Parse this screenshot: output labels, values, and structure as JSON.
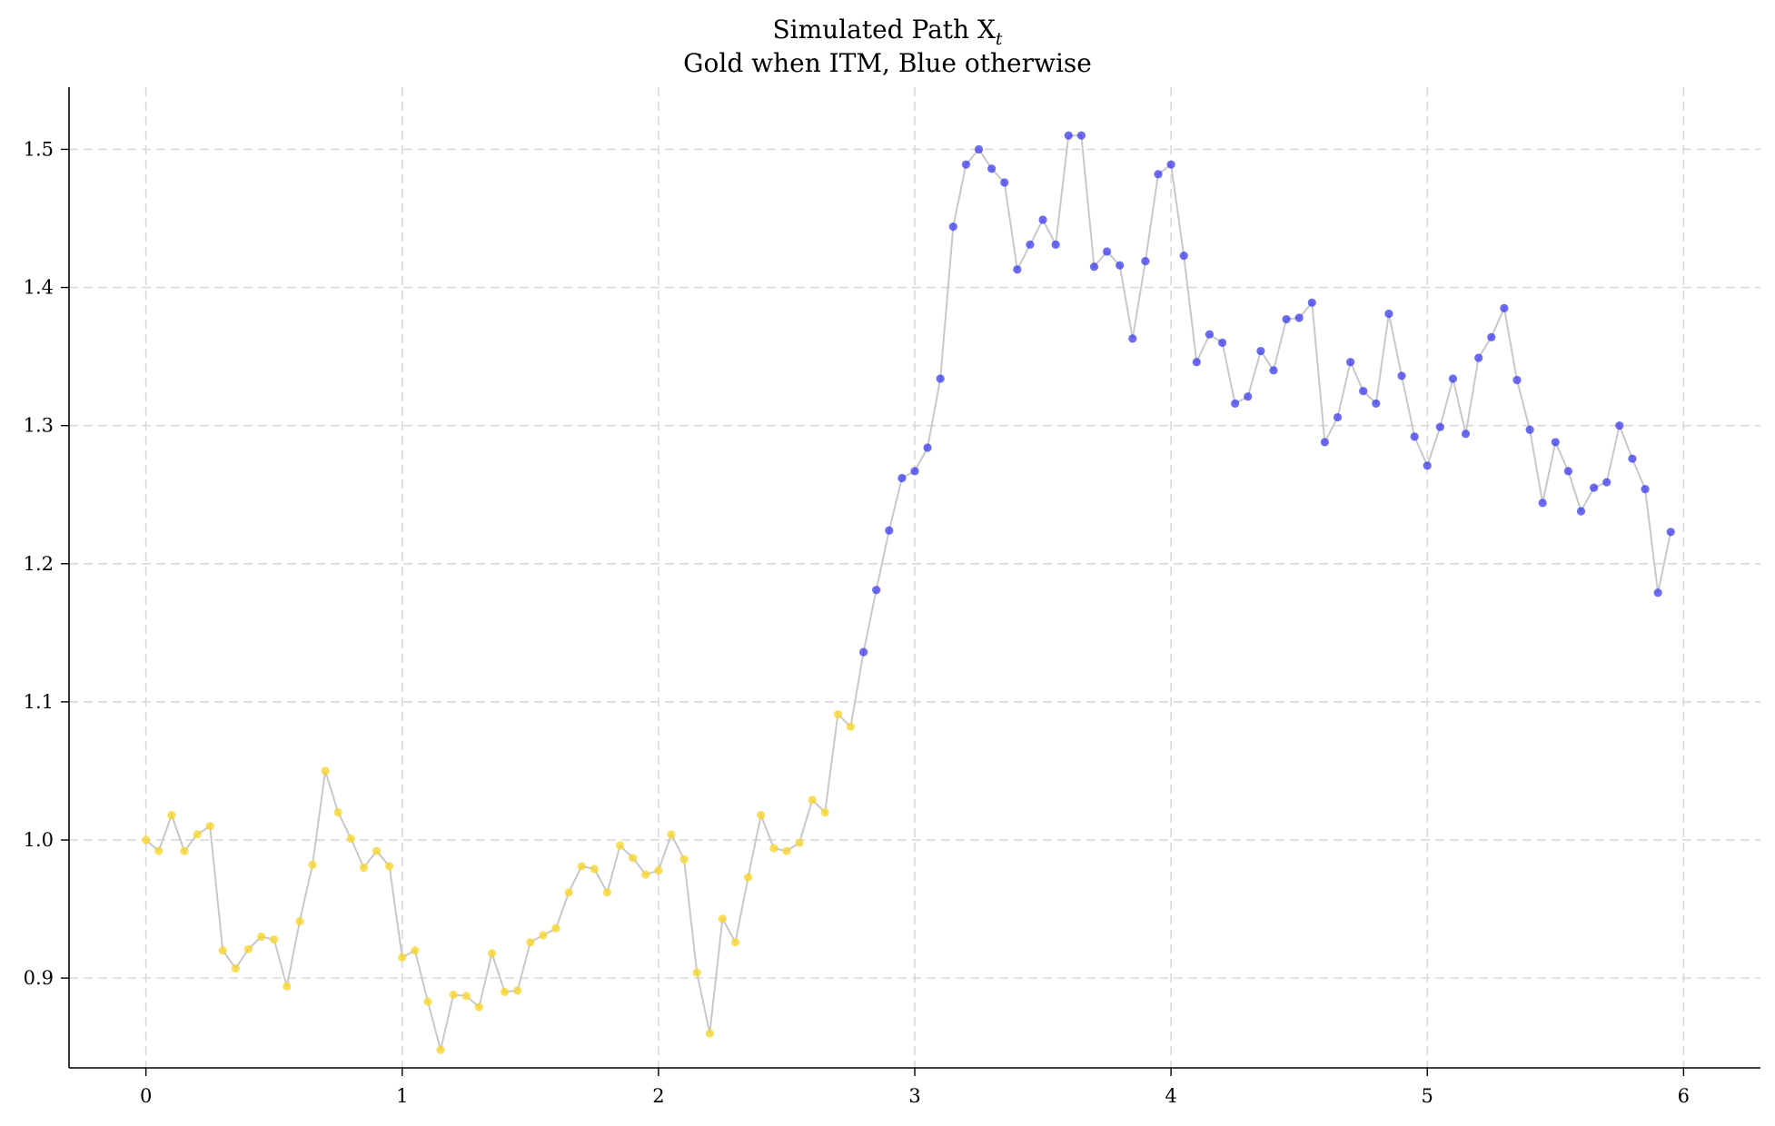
{
  "chart_data": {
    "type": "scatter",
    "title": "Simulated Path X",
    "title_subscript": "t",
    "subtitle": "Gold when ITM, Blue otherwise",
    "xlabel": "",
    "ylabel": "",
    "xlim": [
      -0.3,
      6.3
    ],
    "ylim": [
      0.835,
      1.545
    ],
    "x_ticks": [
      0,
      1,
      2,
      3,
      4,
      5,
      6
    ],
    "x_tick_labels": [
      "0",
      "1",
      "2",
      "3",
      "4",
      "5",
      "6"
    ],
    "y_ticks": [
      0.9,
      1.0,
      1.1,
      1.2,
      1.3,
      1.4,
      1.5
    ],
    "y_tick_labels": [
      "0.9",
      "1.0",
      "1.1",
      "1.2",
      "1.3",
      "1.4",
      "1.5"
    ],
    "grid": true,
    "colors": {
      "itm": "#f7d631",
      "otm": "#3a3af0",
      "line": "#c8c8c8"
    },
    "x_step": 0.05,
    "y": [
      1.0,
      0.992,
      1.018,
      0.992,
      1.004,
      1.01,
      0.92,
      0.907,
      0.921,
      0.93,
      0.928,
      0.894,
      0.941,
      0.982,
      1.05,
      1.02,
      1.001,
      0.98,
      0.992,
      0.981,
      0.915,
      0.92,
      0.883,
      0.848,
      0.888,
      0.887,
      0.879,
      0.918,
      0.89,
      0.891,
      0.926,
      0.931,
      0.936,
      0.962,
      0.981,
      0.979,
      0.962,
      0.996,
      0.987,
      0.975,
      0.978,
      1.004,
      0.986,
      0.904,
      0.86,
      0.943,
      0.926,
      0.973,
      1.018,
      0.994,
      0.992,
      0.998,
      1.029,
      1.02,
      1.091,
      1.082,
      1.136,
      1.181,
      1.224,
      1.262,
      1.267,
      1.284,
      1.334,
      1.444,
      1.489,
      1.5,
      1.486,
      1.476,
      1.413,
      1.431,
      1.449,
      1.431,
      1.51,
      1.51,
      1.415,
      1.426,
      1.416,
      1.363,
      1.419,
      1.482,
      1.489,
      1.423,
      1.346,
      1.366,
      1.36,
      1.316,
      1.321,
      1.354,
      1.34,
      1.377,
      1.378,
      1.389,
      1.288,
      1.306,
      1.346,
      1.325,
      1.316,
      1.381,
      1.336,
      1.292,
      1.271,
      1.299,
      1.334,
      1.294,
      1.349,
      1.364,
      1.385,
      1.333,
      1.297,
      1.244,
      1.288,
      1.267,
      1.238,
      1.255,
      1.259,
      1.3,
      1.276,
      1.254,
      1.179,
      1.223
    ],
    "itm": [
      true,
      true,
      true,
      true,
      true,
      true,
      true,
      true,
      true,
      true,
      true,
      true,
      true,
      true,
      true,
      true,
      true,
      true,
      true,
      true,
      true,
      true,
      true,
      true,
      true,
      true,
      true,
      true,
      true,
      true,
      true,
      true,
      true,
      true,
      true,
      true,
      true,
      true,
      true,
      true,
      true,
      true,
      true,
      true,
      true,
      true,
      true,
      true,
      true,
      true,
      true,
      true,
      true,
      true,
      true,
      true,
      false,
      false,
      false,
      false,
      false,
      false,
      false,
      false,
      false,
      false,
      false,
      false,
      false,
      false,
      false,
      false,
      false,
      false,
      false,
      false,
      false,
      false,
      false,
      false,
      false,
      false,
      false,
      false,
      false,
      false,
      false,
      false,
      false,
      false,
      false,
      false,
      false,
      false,
      false,
      false,
      false,
      false,
      false,
      false,
      false,
      false,
      false,
      false,
      false,
      false,
      false,
      false,
      false,
      false,
      false,
      false,
      false,
      false,
      false,
      false,
      false,
      false,
      false,
      false
    ]
  }
}
